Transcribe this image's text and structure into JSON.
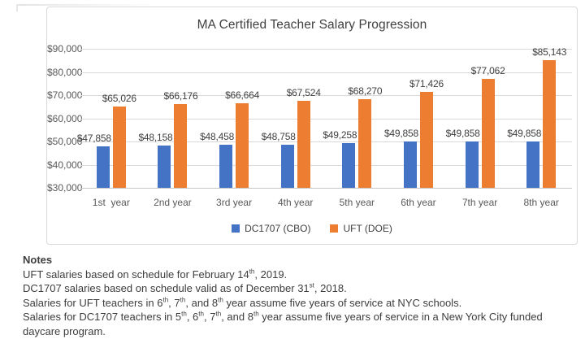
{
  "chart_data": {
    "type": "bar",
    "title": "MA Certified Teacher Salary Progression",
    "categories": [
      "1st  year",
      "2nd year",
      "3rd year",
      "4th year",
      "5th year",
      "6th year",
      "7th year",
      "8th year"
    ],
    "series": [
      {
        "name": "DC1707 (CBO)",
        "color": "#4472C4",
        "values": [
          47858,
          48158,
          48458,
          48758,
          49258,
          49858,
          49858,
          49858
        ],
        "labels": [
          "$47,858",
          "$48,158",
          "$48,458",
          "$48,758",
          "$49,258",
          "$49,858",
          "$49,858",
          "$49,858"
        ]
      },
      {
        "name": "UFT (DOE)",
        "color": "#ED7D31",
        "values": [
          65026,
          66176,
          66664,
          67524,
          68270,
          71426,
          77062,
          85143
        ],
        "labels": [
          "$65,026",
          "$66,176",
          "$66,664",
          "$67,524",
          "$68,270",
          "$71,426",
          "$77,062",
          "$85,143"
        ]
      }
    ],
    "ylim": [
      30000,
      90000
    ],
    "ytick_step": 10000,
    "ytick_labels_top_to_bottom": [
      "$90,000",
      "$80,000",
      "$70,000",
      "$60,000",
      "$50,000",
      "$40,000",
      "$30,000"
    ],
    "grid": true,
    "legend_position": "bottom"
  },
  "notes": {
    "heading": "Notes",
    "lines": [
      [
        {
          "t": "UFT salaries based on schedule for February 14"
        },
        {
          "t": "th",
          "sup": true
        },
        {
          "t": ", 2019."
        }
      ],
      [
        {
          "t": "DC1707 salaries based on schedule valid as of December 31"
        },
        {
          "t": "st",
          "sup": true
        },
        {
          "t": ", 2018."
        }
      ],
      [
        {
          "t": "Salaries for UFT teachers in 6"
        },
        {
          "t": "th",
          "sup": true
        },
        {
          "t": ", 7"
        },
        {
          "t": "th",
          "sup": true
        },
        {
          "t": ", and 8"
        },
        {
          "t": "th",
          "sup": true
        },
        {
          "t": " year assume five years of service at NYC schools."
        }
      ],
      [
        {
          "t": "Salaries for DC1707 teachers in 5"
        },
        {
          "t": "th",
          "sup": true
        },
        {
          "t": ", 6"
        },
        {
          "t": "th",
          "sup": true
        },
        {
          "t": ", 7"
        },
        {
          "t": "th",
          "sup": true
        },
        {
          "t": ", and 8"
        },
        {
          "t": "th",
          "sup": true
        },
        {
          "t": " year assume five years of service in a New York City funded daycare program."
        }
      ]
    ]
  }
}
